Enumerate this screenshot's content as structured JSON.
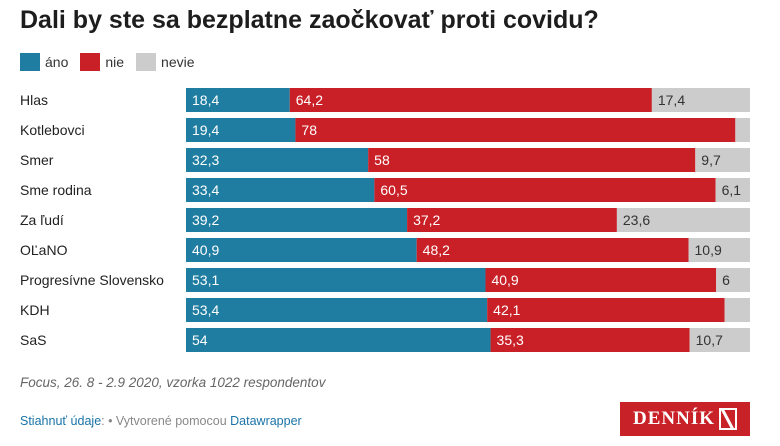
{
  "title": "Dali by ste sa bezplatne zaočkovať proti covidu?",
  "legend": [
    {
      "label": "áno",
      "color": "#1f7da1"
    },
    {
      "label": "nie",
      "color": "#c91f26"
    },
    {
      "label": "nevie",
      "color": "#cccccc"
    }
  ],
  "chart_data": {
    "type": "bar",
    "orientation": "horizontal",
    "stacked": true,
    "title": "Dali by ste sa bezplatne zaočkovať proti covidu?",
    "categories": [
      "Hlas",
      "Kotlebovci",
      "Smer",
      "Sme rodina",
      "Za ľudí",
      "OĽaNO",
      "Progresívne Slovensko",
      "KDH",
      "SaS"
    ],
    "series": [
      {
        "name": "áno",
        "color": "#1f7da1",
        "values": [
          18.4,
          19.4,
          32.3,
          33.4,
          39.2,
          40.9,
          53.1,
          53.4,
          54
        ]
      },
      {
        "name": "nie",
        "color": "#c91f26",
        "values": [
          64.2,
          78,
          58,
          60.5,
          37.2,
          48.2,
          40.9,
          42.1,
          35.3
        ]
      },
      {
        "name": "nevie",
        "color": "#cccccc",
        "values": [
          17.4,
          null,
          9.7,
          6.1,
          23.6,
          10.9,
          6,
          null,
          10.7
        ]
      }
    ],
    "value_labels": [
      [
        "18,4",
        "64,2",
        "17,4"
      ],
      [
        "19,4",
        "78",
        ""
      ],
      [
        "32,3",
        "58",
        "9,7"
      ],
      [
        "33,4",
        "60,5",
        "6,1"
      ],
      [
        "39,2",
        "37,2",
        "23,6"
      ],
      [
        "40,9",
        "48,2",
        "10,9"
      ],
      [
        "53,1",
        "40,9",
        "6"
      ],
      [
        "53,4",
        "42,1",
        ""
      ],
      [
        "54",
        "35,3",
        "10,7"
      ]
    ],
    "xlim": [
      0,
      100
    ],
    "legend_position": "top-left",
    "grid": false
  },
  "note": "Focus, 26. 8 - 2.9 2020, vzorka 1022 respondentov",
  "footer": {
    "download_link": "Stiahnuť údaje",
    "separator": ": • Vytvorené pomocou",
    "tool_link": "Datawrapper"
  },
  "logo": {
    "text": "DENNÍK"
  }
}
